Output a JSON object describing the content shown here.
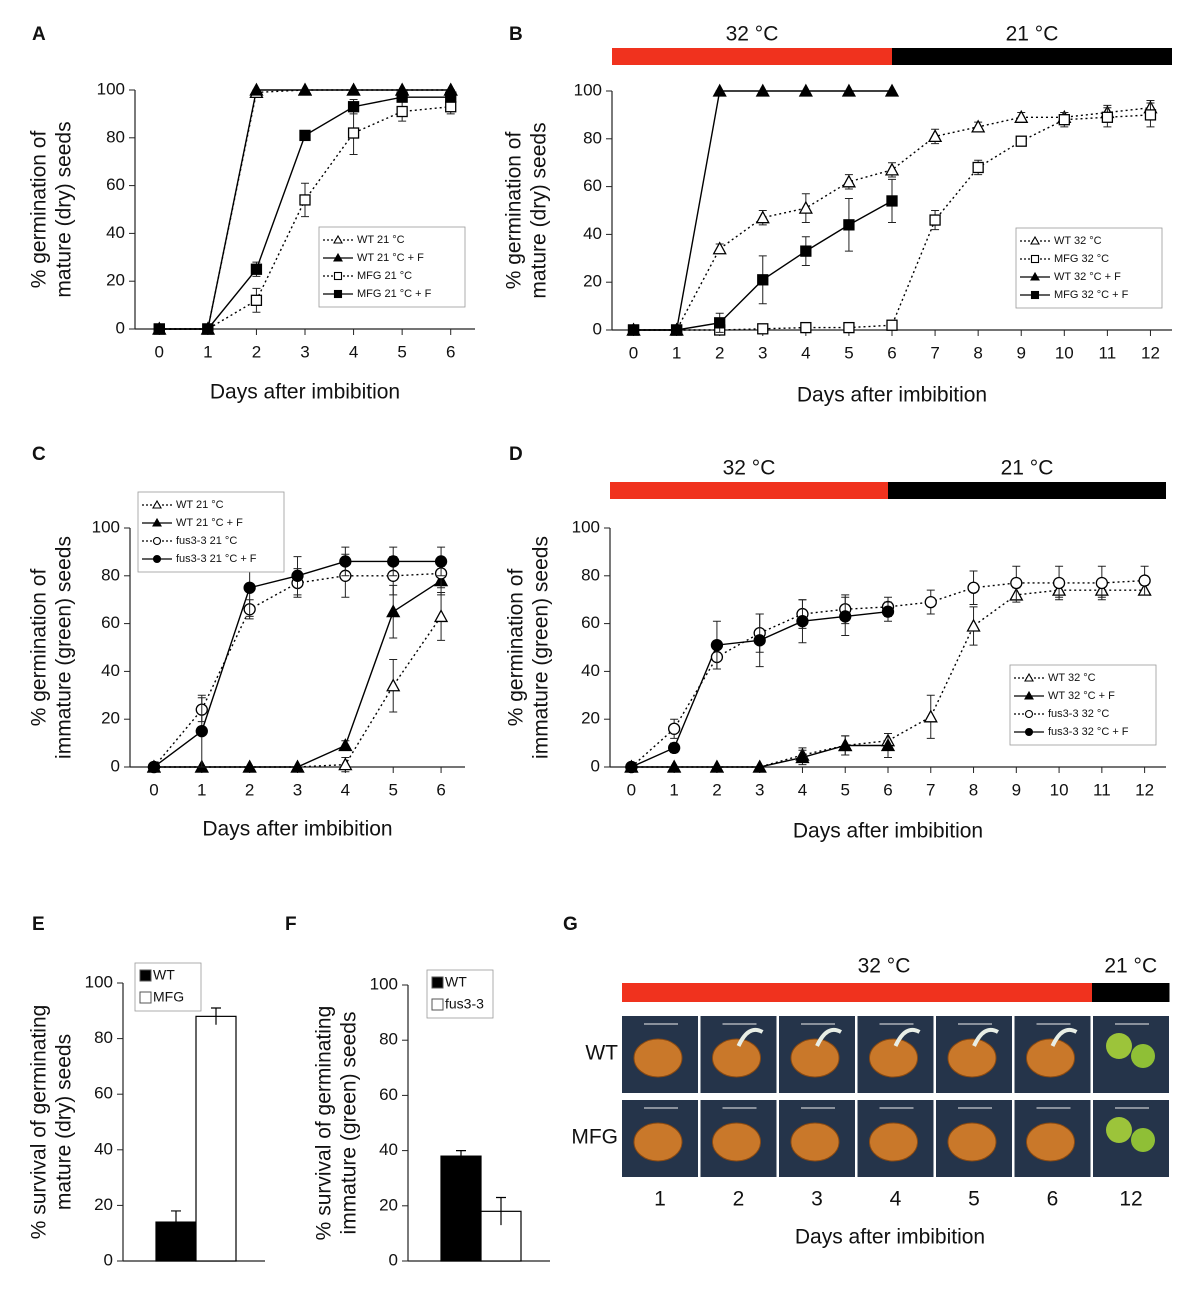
{
  "chart_data": [
    {
      "panel": "A",
      "type": "line",
      "ylabel": [
        "% germination of",
        "mature (dry) seeds"
      ],
      "xlabel": "Days after imbibition",
      "x": [
        0,
        1,
        2,
        3,
        4,
        5,
        6
      ],
      "xlim": [
        -0.5,
        6.5
      ],
      "xticks": [
        0,
        1,
        2,
        3,
        4,
        5,
        6
      ],
      "ylim": [
        0,
        100
      ],
      "yticks": [
        0,
        20,
        40,
        60,
        80,
        100
      ],
      "legend": "lower right",
      "series": [
        {
          "name": "WT 21 °C",
          "color": "#000000",
          "marker": "triangle",
          "filled": false,
          "dashed": true,
          "values": [
            0,
            0,
            99,
            100,
            100,
            100,
            100
          ],
          "errors": [
            0,
            0,
            1,
            0,
            0,
            0,
            0
          ]
        },
        {
          "name": "WT 21 °C + F",
          "color": "#000000",
          "marker": "triangle",
          "filled": true,
          "dashed": false,
          "values": [
            0,
            0,
            100,
            100,
            100,
            100,
            100
          ],
          "errors": [
            0,
            0,
            0,
            0,
            0,
            0,
            0
          ]
        },
        {
          "name": "MFG 21 °C",
          "color": "#000000",
          "marker": "square",
          "filled": false,
          "dashed": true,
          "values": [
            0,
            0,
            12,
            54,
            82,
            91,
            93
          ],
          "errors": [
            0,
            0,
            5,
            7,
            9,
            4,
            3
          ]
        },
        {
          "name": "MFG 21 °C + F",
          "color": "#000000",
          "marker": "square",
          "filled": true,
          "dashed": false,
          "values": [
            0,
            0,
            25,
            81,
            93,
            97,
            97
          ],
          "errors": [
            0,
            0,
            3,
            2,
            3,
            2,
            2
          ]
        }
      ]
    },
    {
      "panel": "B",
      "type": "line",
      "ylabel": [
        "% germination of",
        "mature (dry) seeds"
      ],
      "xlabel": "Days after imbibition",
      "x": [
        0,
        1,
        2,
        3,
        4,
        5,
        6,
        7,
        8,
        9,
        10,
        11,
        12
      ],
      "xlim": [
        -0.5,
        12.5
      ],
      "xticks": [
        0,
        1,
        2,
        3,
        4,
        5,
        6,
        7,
        8,
        9,
        10,
        11,
        12
      ],
      "ylim": [
        0,
        100
      ],
      "yticks": [
        0,
        20,
        40,
        60,
        80,
        100
      ],
      "legend": "lower right",
      "bands": [
        {
          "label": "32 °C",
          "color": "#f0321e",
          "end": 6
        },
        {
          "label": "21 °C",
          "color": "#000000"
        }
      ],
      "series": [
        {
          "name": "WT 32 °C",
          "color": "#000000",
          "marker": "triangle",
          "filled": false,
          "dashed": true,
          "values": [
            0,
            0,
            34,
            47,
            51,
            62,
            67,
            81,
            85,
            89,
            89,
            91,
            93
          ],
          "errors": [
            0,
            0,
            2,
            3,
            6,
            3,
            3,
            3,
            2,
            2,
            2,
            3,
            3
          ]
        },
        {
          "name": "MFG 32 °C",
          "color": "#000000",
          "marker": "square",
          "filled": false,
          "dashed": true,
          "values": [
            0,
            0,
            0,
            0.5,
            1,
            1,
            2,
            46,
            68,
            79,
            88,
            89,
            90
          ],
          "errors": [
            0,
            0,
            0,
            1,
            1,
            1,
            1,
            4,
            3,
            1,
            3,
            4,
            5
          ]
        },
        {
          "name": "WT 32 °C + F",
          "color": "#000000",
          "marker": "triangle",
          "filled": true,
          "dashed": false,
          "values": [
            0,
            0,
            100,
            100,
            100,
            100,
            100,
            null,
            null,
            null,
            null,
            null,
            null
          ],
          "errors": [
            0,
            0,
            0,
            0,
            0,
            0,
            0,
            null,
            null,
            null,
            null,
            null,
            null
          ]
        },
        {
          "name": "MFG 32 °C + F",
          "color": "#000000",
          "marker": "square",
          "filled": true,
          "dashed": false,
          "values": [
            0,
            0,
            3,
            21,
            33,
            44,
            54,
            null,
            null,
            null,
            null,
            null,
            null
          ],
          "errors": [
            0,
            0,
            4,
            10,
            6,
            11,
            9,
            null,
            null,
            null,
            null,
            null,
            null
          ]
        }
      ]
    },
    {
      "panel": "C",
      "type": "line",
      "ylabel": [
        "% germination of",
        "immature (green) seeds"
      ],
      "xlabel": "Days after imbibition",
      "x": [
        0,
        1,
        2,
        3,
        4,
        5,
        6
      ],
      "xlim": [
        -0.5,
        6.5
      ],
      "xticks": [
        0,
        1,
        2,
        3,
        4,
        5,
        6
      ],
      "ylim": [
        0,
        100
      ],
      "yticks": [
        0,
        20,
        40,
        60,
        80,
        100
      ],
      "legend": "upper left",
      "series": [
        {
          "name": "WT 21 °C",
          "color": "#000000",
          "marker": "triangle",
          "filled": false,
          "dashed": true,
          "values": [
            0,
            0,
            0,
            0,
            1,
            34,
            63
          ],
          "errors": [
            0,
            0,
            0,
            0,
            3,
            11,
            10
          ]
        },
        {
          "name": "WT 21 °C + F",
          "color": "#000000",
          "marker": "triangle",
          "filled": true,
          "dashed": false,
          "values": [
            0,
            0,
            0,
            0,
            9,
            65,
            78
          ],
          "errors": [
            0,
            0,
            0,
            0,
            2,
            11,
            6
          ]
        },
        {
          "name": "fus3-3 21 °C",
          "color": "#000000",
          "marker": "circle",
          "filled": false,
          "dashed": true,
          "values": [
            0,
            24,
            66,
            77,
            80,
            80,
            81
          ],
          "errors": [
            0,
            5,
            4,
            6,
            9,
            8,
            6
          ]
        },
        {
          "name": "fus3-3 21 °C + F",
          "color": "#000000",
          "marker": "circle",
          "filled": true,
          "dashed": false,
          "values": [
            0,
            15,
            75,
            80,
            86,
            86,
            86
          ],
          "errors": [
            0,
            15,
            12,
            8,
            6,
            6,
            6
          ]
        }
      ]
    },
    {
      "panel": "D",
      "type": "line",
      "ylabel": [
        "% germination of",
        "immature (green) seeds"
      ],
      "xlabel": "Days after imbibition",
      "x": [
        0,
        1,
        2,
        3,
        4,
        5,
        6,
        7,
        8,
        9,
        10,
        11,
        12
      ],
      "xlim": [
        -0.5,
        12.5
      ],
      "xticks": [
        0,
        1,
        2,
        3,
        4,
        5,
        6,
        7,
        8,
        9,
        10,
        11,
        12
      ],
      "ylim": [
        0,
        100
      ],
      "yticks": [
        0,
        20,
        40,
        60,
        80,
        100
      ],
      "legend": "lower right",
      "bands": [
        {
          "label": "32 °C",
          "color": "#f0321e",
          "end": 6
        },
        {
          "label": "21 °C",
          "color": "#000000"
        }
      ],
      "series": [
        {
          "name": "WT 32 °C",
          "color": "#000000",
          "marker": "triangle",
          "filled": false,
          "dashed": true,
          "values": [
            0,
            0,
            0,
            0,
            5,
            9,
            11,
            21,
            59,
            72,
            74,
            74,
            74
          ],
          "errors": [
            0,
            0,
            0,
            0,
            3,
            4,
            3,
            9,
            8,
            3,
            3,
            3,
            2
          ]
        },
        {
          "name": "WT 32 °C + F",
          "color": "#000000",
          "marker": "triangle",
          "filled": true,
          "dashed": false,
          "values": [
            0,
            0,
            0,
            0,
            4,
            9,
            9,
            null,
            null,
            null,
            null,
            null,
            null
          ],
          "errors": [
            0,
            0,
            0,
            0,
            3,
            4,
            5,
            null,
            null,
            null,
            null,
            null,
            null
          ]
        },
        {
          "name": "fus3-3 32 °C",
          "color": "#000000",
          "marker": "circle",
          "filled": false,
          "dashed": true,
          "values": [
            0,
            16,
            46,
            56,
            64,
            66,
            67,
            69,
            75,
            77,
            77,
            77,
            78
          ],
          "errors": [
            0,
            4,
            5,
            8,
            6,
            6,
            4,
            5,
            7,
            7,
            7,
            7,
            6
          ]
        },
        {
          "name": "fus3-3 32 °C + F",
          "color": "#000000",
          "marker": "circle",
          "filled": true,
          "dashed": false,
          "values": [
            0,
            8,
            51,
            53,
            61,
            63,
            65,
            null,
            null,
            null,
            null,
            null,
            null
          ],
          "errors": [
            0,
            2,
            10,
            11,
            9,
            8,
            4,
            null,
            null,
            null,
            null,
            null,
            null
          ]
        }
      ]
    },
    {
      "panel": "E",
      "type": "bar",
      "ylabel": [
        "% survival of germinating",
        "mature (dry) seeds"
      ],
      "categories": [
        null
      ],
      "ylim": [
        0,
        100
      ],
      "yticks": [
        0,
        20,
        40,
        60,
        80,
        100
      ],
      "legend": "upper left",
      "series": [
        {
          "name": "WT",
          "color": "#000000",
          "values": [
            14
          ],
          "errors": [
            4
          ]
        },
        {
          "name": "MFG",
          "color": "#ffffff",
          "values": [
            88
          ],
          "errors": [
            3
          ]
        }
      ]
    },
    {
      "panel": "F",
      "type": "bar",
      "ylabel": [
        "% survival of germinating",
        "immature (green) seeds"
      ],
      "categories": [
        null
      ],
      "ylim": [
        0,
        100
      ],
      "yticks": [
        0,
        20,
        40,
        60,
        80,
        100
      ],
      "legend": "upper left",
      "series": [
        {
          "name": "WT",
          "color": "#000000",
          "values": [
            38
          ],
          "errors": [
            2
          ]
        },
        {
          "name": "fus3-3",
          "color": "#ffffff",
          "values": [
            18
          ],
          "errors": [
            5
          ]
        }
      ]
    },
    {
      "panel": "G",
      "type": "photo-grid",
      "xlabel": "Days after imbibition",
      "categories": [
        "1",
        "2",
        "3",
        "4",
        "5",
        "6",
        "12"
      ],
      "rows": [
        "WT",
        "MFG"
      ],
      "bands": [
        {
          "label": "32 °C",
          "color": "#f0321e"
        },
        {
          "label": "21 °C",
          "color": "#000000"
        }
      ]
    }
  ]
}
